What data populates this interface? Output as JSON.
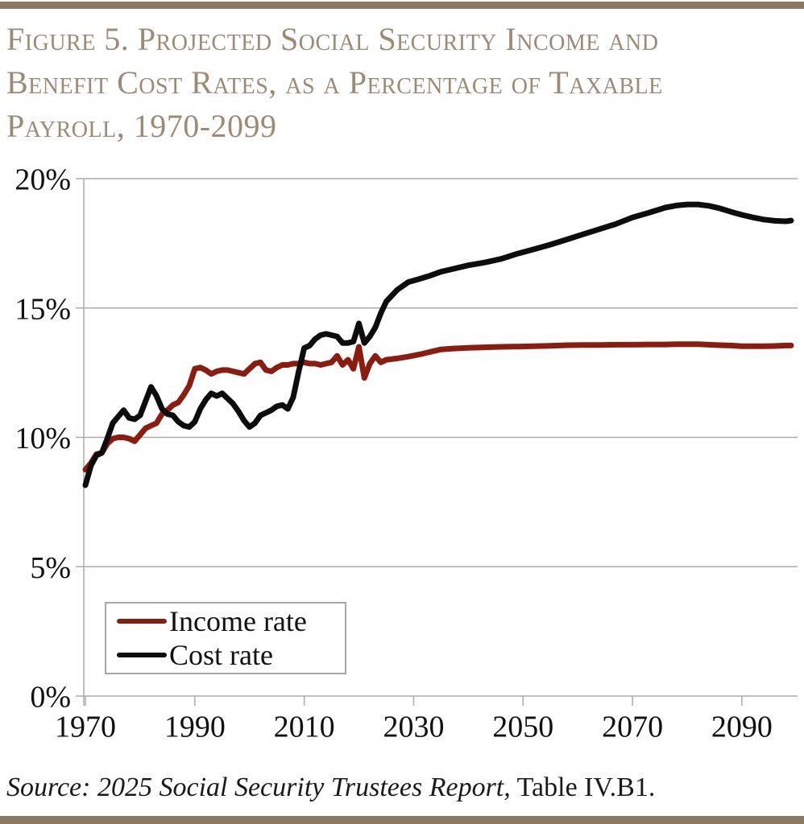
{
  "page": {
    "title_lines": [
      "Figure 5. Projected Social Security Income and",
      "Benefit Cost Rates, as a Percentage of Taxable",
      "Payroll, 1970-2099"
    ],
    "title_full": "Figure 5. Projected Social Security Income and Benefit Cost Rates, as a Percentage of Taxable Payroll, 1970-2099",
    "source_italic": "Source: 2025 Social Security Trustees Report,",
    "source_normal": " Table IV.B1.",
    "colors": {
      "accent_bar": "#8a7a63",
      "title_text": "#9c8b74",
      "grid": "#ababab",
      "income_line": "#8b1c10",
      "cost_line": "#0d0d0d",
      "legend_border": "#a8a8a8"
    }
  },
  "chart_data": {
    "type": "line",
    "title": "Projected Social Security Income and Benefit Cost Rates, as a Percentage of Taxable Payroll, 1970-2099",
    "xlabel": "",
    "ylabel": "",
    "xlim": [
      1970,
      2099
    ],
    "ylim": [
      0,
      20
    ],
    "grid": true,
    "legend_position": "inside-bottom-left",
    "x_tick_values": [
      1970,
      1990,
      2010,
      2030,
      2050,
      2070,
      2090
    ],
    "x_tick_labels": [
      "1970",
      "1990",
      "2010",
      "2030",
      "2050",
      "2070",
      "2090"
    ],
    "y_tick_values": [
      0,
      5,
      10,
      15,
      20
    ],
    "y_tick_labels": [
      "0%",
      "5%",
      "10%",
      "15%",
      "20%"
    ],
    "x": [
      1970,
      1971,
      1972,
      1973,
      1974,
      1975,
      1976,
      1977,
      1978,
      1979,
      1980,
      1981,
      1982,
      1983,
      1984,
      1985,
      1986,
      1987,
      1988,
      1989,
      1990,
      1991,
      1992,
      1993,
      1994,
      1995,
      1996,
      1997,
      1998,
      1999,
      2000,
      2001,
      2002,
      2003,
      2004,
      2005,
      2006,
      2007,
      2008,
      2009,
      2010,
      2011,
      2012,
      2013,
      2014,
      2015,
      2016,
      2017,
      2018,
      2019,
      2020,
      2021,
      2022,
      2023,
      2024,
      2025,
      2027,
      2029,
      2031,
      2033,
      2035,
      2037,
      2040,
      2043,
      2046,
      2049,
      2052,
      2055,
      2058,
      2061,
      2064,
      2067,
      2070,
      2073,
      2076,
      2078,
      2080,
      2082,
      2084,
      2086,
      2088,
      2090,
      2092,
      2094,
      2096,
      2098,
      2099
    ],
    "series": [
      {
        "name": "Income rate",
        "color": "#8b1c10",
        "values": [
          8.75,
          9.0,
          9.35,
          9.4,
          9.75,
          9.95,
          10.0,
          10.0,
          9.95,
          9.85,
          10.1,
          10.35,
          10.45,
          10.55,
          10.9,
          11.05,
          11.25,
          11.35,
          11.65,
          12.0,
          12.65,
          12.7,
          12.6,
          12.45,
          12.55,
          12.6,
          12.6,
          12.55,
          12.5,
          12.45,
          12.65,
          12.85,
          12.9,
          12.6,
          12.55,
          12.7,
          12.8,
          12.8,
          12.85,
          12.85,
          12.9,
          12.85,
          12.85,
          12.8,
          12.85,
          12.9,
          13.15,
          12.8,
          13.0,
          12.65,
          13.5,
          12.3,
          12.85,
          13.15,
          12.9,
          13.0,
          13.05,
          13.12,
          13.2,
          13.3,
          13.4,
          13.43,
          13.46,
          13.48,
          13.5,
          13.51,
          13.52,
          13.54,
          13.56,
          13.57,
          13.57,
          13.58,
          13.58,
          13.59,
          13.59,
          13.6,
          13.6,
          13.6,
          13.58,
          13.56,
          13.55,
          13.52,
          13.52,
          13.52,
          13.53,
          13.55,
          13.55
        ]
      },
      {
        "name": "Cost rate",
        "color": "#0d0d0d",
        "values": [
          8.15,
          8.9,
          9.3,
          9.4,
          9.95,
          10.55,
          10.8,
          11.05,
          10.75,
          10.7,
          10.85,
          11.4,
          11.95,
          11.6,
          11.1,
          10.9,
          10.85,
          10.6,
          10.45,
          10.4,
          10.6,
          11.1,
          11.45,
          11.7,
          11.6,
          11.7,
          11.5,
          11.3,
          11.0,
          10.65,
          10.4,
          10.55,
          10.85,
          10.95,
          11.05,
          11.2,
          11.25,
          11.1,
          11.55,
          12.55,
          13.45,
          13.55,
          13.8,
          13.95,
          14.0,
          13.95,
          13.9,
          13.65,
          13.65,
          13.7,
          14.4,
          13.65,
          13.9,
          14.25,
          14.8,
          15.25,
          15.7,
          16.0,
          16.12,
          16.25,
          16.4,
          16.5,
          16.65,
          16.76,
          16.9,
          17.1,
          17.27,
          17.45,
          17.65,
          17.85,
          18.05,
          18.25,
          18.5,
          18.68,
          18.88,
          18.96,
          19.0,
          19.0,
          18.95,
          18.85,
          18.72,
          18.6,
          18.5,
          18.42,
          18.37,
          18.35,
          18.38
        ]
      }
    ]
  }
}
